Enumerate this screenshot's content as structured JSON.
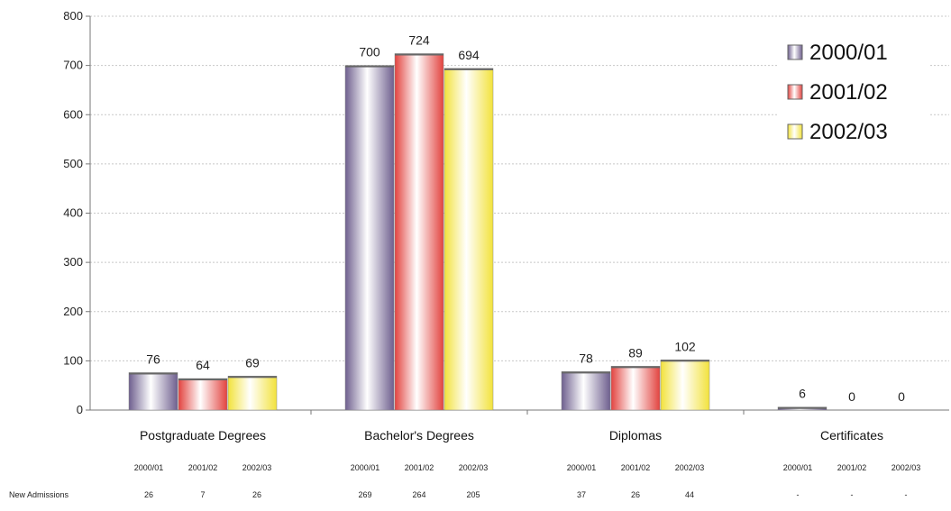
{
  "chart_data": {
    "type": "bar",
    "categories": [
      "Postgraduate Degrees",
      "Bachelor's Degrees",
      "Diplomas",
      "Certificates"
    ],
    "series": [
      {
        "name": "2000/01",
        "values": [
          76,
          700,
          78,
          6
        ]
      },
      {
        "name": "2001/02",
        "values": [
          64,
          724,
          89,
          0
        ]
      },
      {
        "name": "2002/03",
        "values": [
          69,
          694,
          102,
          0
        ]
      }
    ],
    "ylim": [
      0,
      800
    ],
    "yticks": [
      0,
      100,
      200,
      300,
      400,
      500,
      600,
      700,
      800
    ],
    "grid": true,
    "legend_position": "top-right",
    "colors": {
      "2000/01": "#6e5f8e",
      "2001/02": "#e2433f",
      "2002/03": "#f2e23c"
    },
    "table": {
      "row_label": "New Admissions",
      "rows": [
        {
          "years": [
            "2000/01",
            "2001/02",
            "2002/03"
          ],
          "values": [
            "26",
            "7",
            "26"
          ]
        },
        {
          "years": [
            "2000/01",
            "2001/02",
            "2002/03"
          ],
          "values": [
            "269",
            "264",
            "205"
          ]
        },
        {
          "years": [
            "2000/01",
            "2001/02",
            "2002/03"
          ],
          "values": [
            "37",
            "26",
            "44"
          ]
        },
        {
          "years": [
            "2000/01",
            "2001/02",
            "2002/03"
          ],
          "values": [
            "-",
            "-",
            "-"
          ]
        }
      ]
    }
  }
}
